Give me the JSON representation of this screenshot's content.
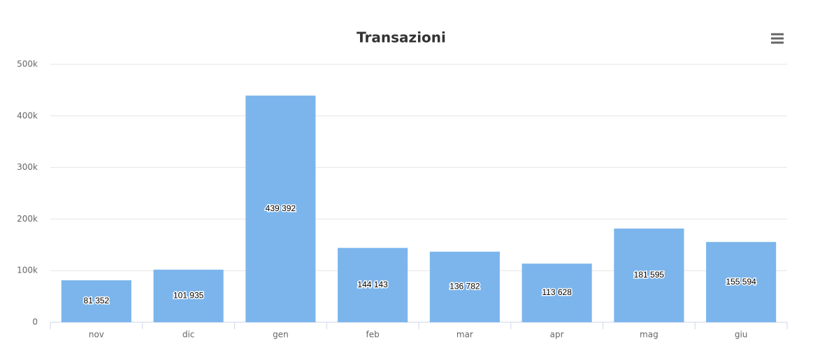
{
  "chart_data": {
    "type": "bar",
    "title": "Transazioni",
    "categories": [
      "nov",
      "dic",
      "gen",
      "feb",
      "mar",
      "apr",
      "mag",
      "giu"
    ],
    "values": [
      81352,
      101935,
      439392,
      144143,
      136782,
      113628,
      181595,
      155594
    ],
    "value_labels": [
      "81 352",
      "101 935",
      "439 392",
      "144 143",
      "136 782",
      "113 628",
      "181 595",
      "155 594"
    ],
    "color": "#7cb5ec",
    "ylim": [
      0,
      500000
    ],
    "yticks": [
      0,
      {
        "value": 100000,
        "label": "100k"
      },
      {
        "value": 200000,
        "label": "200k"
      },
      {
        "value": 300000,
        "label": "300k"
      },
      {
        "value": 400000,
        "label": "400k"
      },
      {
        "value": 500000,
        "label": "500k"
      }
    ],
    "grid": true
  }
}
